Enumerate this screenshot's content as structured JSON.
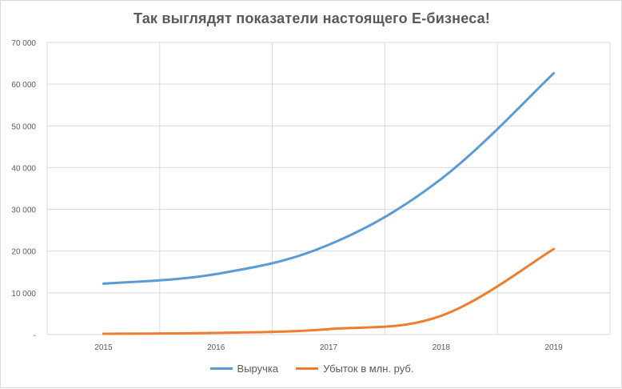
{
  "chart_data": {
    "type": "line",
    "title": "Так выглядят  показатели настоящего  Е-бизнеса!",
    "xlabel": "",
    "ylabel": "",
    "categories": [
      "2015",
      "2016",
      "2017",
      "2018",
      "2019"
    ],
    "ylim": [
      0,
      70000
    ],
    "yticks": [
      0,
      10000,
      20000,
      30000,
      40000,
      50000,
      60000,
      70000
    ],
    "ytick_labels": [
      "-",
      "10 000",
      "20 000",
      "30 000",
      "40 000",
      "50 000",
      "60 000",
      "70 000"
    ],
    "grid": true,
    "legend_position": "bottom",
    "series": [
      {
        "name": "Выручка",
        "color": "#5b9bd5",
        "values": [
          12200,
          14500,
          21500,
          37300,
          62600
        ]
      },
      {
        "name": "Убыток в млн. руб.",
        "color": "#ed7d31",
        "values": [
          200,
          400,
          1300,
          4500,
          20500
        ]
      }
    ]
  }
}
